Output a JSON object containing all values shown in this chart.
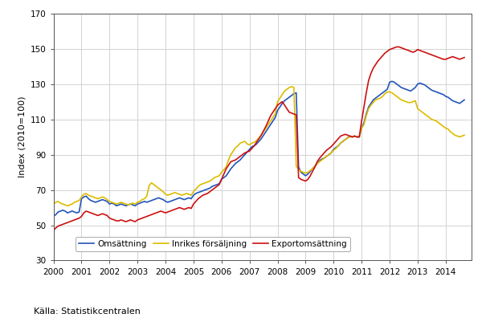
{
  "title": "",
  "ylabel": "Index (2010=100)",
  "source": "Källa: Statistikcentralen",
  "ylim": [
    30,
    170
  ],
  "yticks": [
    30,
    50,
    70,
    90,
    110,
    130,
    150,
    170
  ],
  "xlim": [
    2000.0,
    2014.92
  ],
  "xticks": [
    2000,
    2001,
    2002,
    2003,
    2004,
    2005,
    2006,
    2007,
    2008,
    2009,
    2010,
    2011,
    2012,
    2013,
    2014
  ],
  "colors": {
    "omsattning": "#2255bb",
    "inrikes": "#ddbb00",
    "export": "#cc1111"
  },
  "legend": [
    "Omsättning",
    "Inrikes försäljning",
    "Exportomsättning"
  ],
  "omsattning": [
    55.0,
    56.0,
    57.5,
    58.0,
    58.5,
    58.0,
    57.0,
    57.5,
    58.0,
    57.5,
    57.0,
    57.5,
    65.0,
    66.0,
    66.5,
    65.0,
    64.0,
    63.5,
    63.0,
    63.5,
    64.0,
    64.5,
    64.0,
    63.5,
    62.0,
    62.5,
    62.0,
    61.0,
    61.5,
    62.0,
    61.5,
    61.0,
    61.5,
    62.0,
    61.5,
    61.0,
    62.0,
    62.5,
    63.0,
    63.5,
    63.0,
    63.5,
    64.0,
    64.5,
    65.0,
    65.5,
    65.0,
    64.5,
    63.5,
    63.0,
    63.5,
    64.0,
    64.5,
    65.0,
    65.5,
    65.0,
    64.5,
    65.0,
    65.5,
    65.0,
    67.0,
    68.0,
    68.5,
    69.0,
    69.5,
    70.0,
    70.5,
    71.0,
    72.0,
    72.5,
    73.0,
    73.5,
    76.0,
    77.0,
    78.0,
    80.0,
    82.0,
    83.5,
    85.0,
    86.0,
    87.0,
    88.5,
    90.0,
    91.5,
    93.0,
    94.5,
    95.0,
    96.0,
    97.5,
    99.0,
    101.0,
    103.0,
    105.0,
    107.0,
    109.0,
    111.0,
    115.0,
    117.0,
    119.0,
    120.5,
    121.5,
    122.5,
    123.5,
    124.5,
    125.0,
    83.0,
    80.0,
    79.0,
    78.0,
    79.0,
    80.5,
    82.0,
    83.5,
    85.0,
    86.5,
    87.5,
    88.0,
    89.0,
    90.0,
    91.0,
    93.0,
    94.0,
    95.0,
    96.5,
    97.5,
    98.5,
    99.5,
    100.5,
    100.0,
    100.5,
    100.0,
    100.0,
    105.0,
    108.0,
    113.0,
    117.0,
    119.0,
    121.0,
    122.0,
    123.0,
    124.0,
    125.0,
    126.0,
    127.0,
    131.0,
    131.5,
    131.0,
    130.0,
    129.0,
    128.0,
    127.5,
    127.0,
    126.5,
    126.0,
    127.0,
    128.0,
    130.0,
    130.5,
    130.0,
    129.5,
    128.5,
    127.5,
    126.5,
    126.0,
    125.5,
    125.0,
    124.5,
    124.0,
    123.0,
    122.5,
    121.5,
    120.5,
    120.0,
    119.5,
    119.0,
    120.0,
    121.0
  ],
  "inrikes": [
    62.0,
    63.0,
    63.5,
    62.5,
    62.0,
    61.5,
    61.0,
    61.5,
    62.0,
    63.0,
    63.5,
    64.0,
    66.0,
    67.5,
    68.0,
    67.0,
    66.5,
    66.0,
    65.5,
    65.0,
    65.5,
    66.0,
    65.5,
    64.5,
    63.5,
    63.0,
    62.5,
    62.0,
    62.5,
    63.0,
    62.5,
    62.0,
    61.5,
    62.0,
    62.5,
    62.0,
    63.0,
    63.5,
    64.5,
    65.0,
    66.5,
    72.5,
    74.0,
    73.0,
    72.0,
    71.0,
    70.0,
    69.0,
    67.5,
    67.0,
    67.5,
    68.0,
    68.5,
    68.0,
    67.5,
    67.0,
    67.5,
    68.0,
    67.5,
    67.0,
    69.0,
    70.5,
    72.0,
    73.0,
    73.5,
    74.0,
    74.5,
    75.0,
    76.0,
    77.0,
    77.5,
    78.0,
    80.0,
    81.5,
    83.0,
    87.0,
    90.0,
    92.0,
    94.0,
    95.0,
    96.5,
    97.0,
    97.5,
    96.0,
    95.5,
    96.5,
    97.0,
    98.0,
    99.5,
    101.0,
    103.0,
    105.0,
    107.0,
    109.0,
    111.0,
    113.0,
    120.0,
    122.0,
    124.0,
    126.0,
    127.0,
    128.0,
    128.5,
    128.0,
    83.5,
    81.5,
    80.5,
    80.0,
    79.5,
    80.0,
    81.0,
    82.0,
    83.5,
    85.0,
    86.0,
    87.0,
    88.0,
    89.0,
    90.0,
    91.0,
    92.5,
    93.5,
    95.0,
    96.5,
    97.5,
    98.5,
    99.5,
    100.0,
    100.0,
    100.5,
    100.0,
    100.0,
    105.0,
    107.0,
    112.0,
    116.0,
    118.0,
    119.5,
    121.0,
    121.5,
    122.0,
    123.0,
    124.5,
    125.5,
    125.5,
    125.0,
    124.0,
    123.0,
    122.0,
    121.0,
    120.5,
    120.0,
    119.5,
    119.5,
    120.0,
    120.5,
    116.0,
    115.0,
    114.0,
    113.0,
    112.0,
    111.0,
    110.0,
    109.5,
    109.0,
    108.0,
    107.0,
    106.0,
    105.0,
    104.5,
    103.0,
    102.0,
    101.0,
    100.5,
    100.0,
    100.5,
    101.0
  ],
  "export": [
    47.0,
    48.5,
    49.5,
    50.0,
    50.5,
    51.0,
    51.5,
    52.0,
    52.5,
    53.0,
    53.5,
    54.0,
    55.0,
    57.0,
    58.0,
    57.5,
    57.0,
    56.5,
    56.0,
    55.5,
    56.0,
    56.5,
    56.0,
    55.5,
    54.0,
    53.5,
    53.0,
    52.5,
    52.5,
    53.0,
    52.5,
    52.0,
    52.5,
    53.0,
    52.5,
    52.0,
    53.0,
    53.5,
    54.0,
    54.5,
    55.0,
    55.5,
    56.0,
    56.5,
    57.0,
    57.5,
    58.0,
    57.5,
    57.0,
    57.5,
    58.0,
    58.5,
    59.0,
    59.5,
    60.0,
    59.5,
    59.0,
    59.5,
    60.0,
    59.5,
    62.0,
    63.5,
    65.0,
    66.0,
    67.0,
    67.5,
    68.0,
    69.0,
    70.0,
    71.0,
    72.0,
    73.0,
    76.0,
    79.0,
    82.0,
    84.0,
    86.0,
    86.5,
    87.0,
    88.0,
    89.0,
    90.0,
    91.0,
    91.5,
    92.0,
    93.5,
    95.0,
    97.0,
    99.0,
    101.0,
    103.5,
    106.0,
    109.0,
    112.0,
    114.0,
    116.0,
    118.0,
    119.0,
    120.0,
    118.0,
    116.0,
    114.0,
    113.5,
    113.0,
    112.5,
    77.0,
    76.0,
    75.5,
    75.0,
    76.0,
    78.0,
    80.5,
    83.0,
    86.0,
    88.0,
    89.5,
    91.0,
    92.5,
    93.5,
    94.5,
    96.0,
    97.5,
    99.0,
    100.5,
    101.0,
    101.5,
    101.0,
    100.5,
    100.0,
    100.5,
    100.0,
    100.0,
    109.0,
    117.0,
    125.0,
    132.0,
    136.0,
    139.0,
    141.0,
    143.0,
    144.5,
    146.0,
    147.5,
    148.5,
    149.5,
    150.0,
    150.5,
    151.0,
    151.0,
    150.5,
    150.0,
    149.5,
    149.0,
    148.5,
    148.0,
    148.5,
    149.5,
    149.0,
    148.5,
    148.0,
    147.5,
    147.0,
    146.5,
    146.0,
    145.5,
    145.0,
    144.5,
    144.0,
    144.0,
    144.5,
    145.0,
    145.5,
    145.0,
    144.5,
    144.0,
    144.5,
    145.0
  ]
}
